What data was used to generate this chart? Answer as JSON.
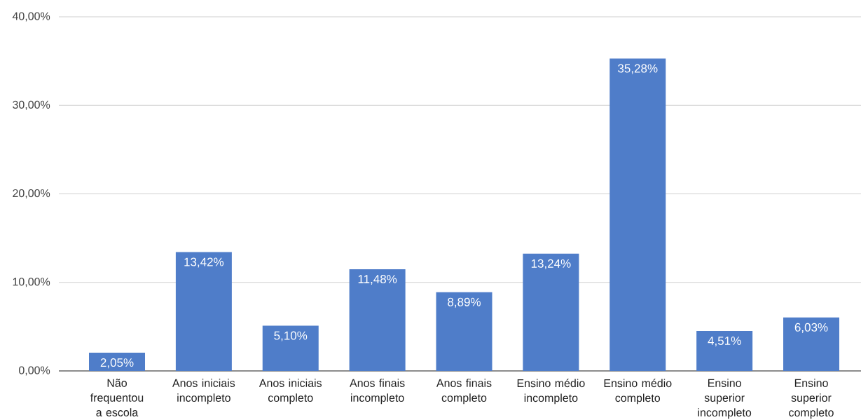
{
  "chart_data": {
    "type": "bar",
    "categories": [
      "Não frequentou a escola",
      "Anos iniciais incompleto",
      "Anos iniciais completo",
      "Anos finais incompleto",
      "Anos finais completo",
      "Ensino médio incompleto",
      "Ensino médio completo",
      "Ensino superior incompleto",
      "Ensino superior completo"
    ],
    "values": [
      2.05,
      13.42,
      5.1,
      11.48,
      8.89,
      13.24,
      35.28,
      4.51,
      6.03
    ],
    "value_labels": [
      "2,05%",
      "13,42%",
      "5,10%",
      "11,48%",
      "8,89%",
      "13,24%",
      "35,28%",
      "4,51%",
      "6,03%"
    ],
    "color": "#4f7dc9",
    "ylim": [
      0,
      40
    ],
    "yticks": [
      {
        "value": 0,
        "label": "0,00%"
      },
      {
        "value": 10,
        "label": "10,00%"
      },
      {
        "value": 20,
        "label": "20,00%"
      },
      {
        "value": 30,
        "label": "30,00%"
      },
      {
        "value": 40,
        "label": "40,00%"
      }
    ],
    "grid": "y"
  }
}
